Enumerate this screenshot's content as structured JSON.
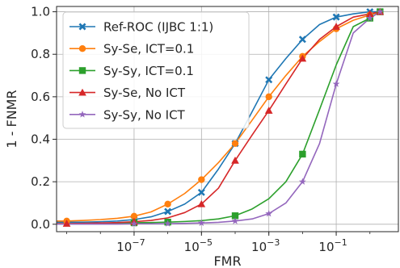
{
  "chart_data": {
    "type": "line",
    "xlabel": "FMR",
    "ylabel": "1 - FNMR",
    "xscale": "log",
    "xlim": [
      5e-10,
      7.0
    ],
    "ylim": [
      -0.035,
      1.025
    ],
    "x_ticks": [
      {
        "value": 1e-07,
        "base": "10",
        "exp": "−7"
      },
      {
        "value": 1e-05,
        "base": "10",
        "exp": "−5"
      },
      {
        "value": 0.001,
        "base": "10",
        "exp": "−3"
      },
      {
        "value": 0.1,
        "base": "10",
        "exp": "−1"
      }
    ],
    "y_ticks": [
      {
        "value": 0.0,
        "label": "0.0"
      },
      {
        "value": 0.2,
        "label": "0.2"
      },
      {
        "value": 0.4,
        "label": "0.4"
      },
      {
        "value": 0.6,
        "label": "0.6"
      },
      {
        "value": 0.8,
        "label": "0.8"
      },
      {
        "value": 1.0,
        "label": "1.0"
      }
    ],
    "grid": true,
    "legend_position": "top-left",
    "series": [
      {
        "name": "Ref-ROC (IJBC 1:1)",
        "color": "#1f77b4",
        "marker": "x",
        "x": [
          5e-10,
          1e-09,
          3.2e-09,
          1e-08,
          3.2e-08,
          1e-07,
          3.2e-07,
          1e-06,
          3.2e-06,
          1e-05,
          3.2e-05,
          0.0001,
          0.00032,
          0.001,
          0.0032,
          0.01,
          0.032,
          0.1,
          0.32,
          1.0,
          2.0
        ],
        "y": [
          0.01,
          0.01,
          0.01,
          0.012,
          0.015,
          0.022,
          0.035,
          0.06,
          0.095,
          0.15,
          0.26,
          0.38,
          0.53,
          0.68,
          0.78,
          0.87,
          0.94,
          0.975,
          0.99,
          1.0,
          1.0
        ],
        "marker_idx": [
          5,
          7,
          9,
          11,
          13,
          15,
          17,
          19,
          20
        ]
      },
      {
        "name": "Sy-Se, ICT=0.1",
        "color": "#ff7f0e",
        "marker": "o",
        "x": [
          5e-10,
          1e-09,
          3.2e-09,
          1e-08,
          3.2e-08,
          1e-07,
          3.2e-07,
          1e-06,
          3.2e-06,
          1e-05,
          3.2e-05,
          0.0001,
          0.00032,
          0.001,
          0.0032,
          0.01,
          0.032,
          0.1,
          0.32,
          1.0,
          2.0
        ],
        "y": [
          0.015,
          0.015,
          0.018,
          0.022,
          0.028,
          0.038,
          0.058,
          0.095,
          0.145,
          0.21,
          0.29,
          0.38,
          0.49,
          0.6,
          0.7,
          0.79,
          0.86,
          0.92,
          0.96,
          0.985,
          1.0
        ],
        "marker_idx": [
          1,
          5,
          7,
          9,
          11,
          13,
          15,
          17,
          19,
          20
        ]
      },
      {
        "name": "Sy-Sy, ICT=0.1",
        "color": "#2ca02c",
        "marker": "s",
        "x": [
          5e-10,
          1e-09,
          3.2e-09,
          1e-08,
          3.2e-08,
          1e-07,
          3.2e-07,
          1e-06,
          3.2e-06,
          1e-05,
          3.2e-05,
          0.0001,
          0.00032,
          0.001,
          0.0032,
          0.01,
          0.032,
          0.1,
          0.32,
          1.0,
          2.0
        ],
        "y": [
          0.003,
          0.003,
          0.004,
          0.005,
          0.006,
          0.007,
          0.008,
          0.01,
          0.013,
          0.017,
          0.025,
          0.04,
          0.072,
          0.12,
          0.2,
          0.33,
          0.54,
          0.75,
          0.93,
          0.97,
          1.0
        ],
        "marker_idx": [
          5,
          7,
          11,
          15,
          19,
          20
        ]
      },
      {
        "name": "Sy-Se, No ICT",
        "color": "#d62728",
        "marker": "^",
        "x": [
          5e-10,
          1e-09,
          3.2e-09,
          1e-08,
          3.2e-08,
          1e-07,
          3.2e-07,
          1e-06,
          3.2e-06,
          1e-05,
          3.2e-05,
          0.0001,
          0.00032,
          0.001,
          0.0032,
          0.01,
          0.032,
          0.1,
          0.32,
          1.0,
          2.0
        ],
        "y": [
          0.003,
          0.003,
          0.004,
          0.006,
          0.008,
          0.012,
          0.018,
          0.03,
          0.055,
          0.095,
          0.17,
          0.3,
          0.42,
          0.535,
          0.66,
          0.78,
          0.87,
          0.93,
          0.975,
          0.99,
          1.0
        ],
        "marker_idx": [
          1,
          5,
          9,
          11,
          13,
          15,
          17,
          19,
          20
        ]
      },
      {
        "name": "Sy-Sy, No ICT",
        "color": "#9467bd",
        "marker": "*",
        "x": [
          5e-10,
          1e-09,
          3.2e-09,
          1e-08,
          3.2e-08,
          1e-07,
          3.2e-07,
          1e-06,
          3.2e-06,
          1e-05,
          3.2e-05,
          0.0001,
          0.00032,
          0.001,
          0.0032,
          0.01,
          0.032,
          0.1,
          0.32,
          1.0,
          2.0
        ],
        "y": [
          0.001,
          0.001,
          0.001,
          0.001,
          0.001,
          0.002,
          0.002,
          0.003,
          0.004,
          0.006,
          0.009,
          0.015,
          0.025,
          0.05,
          0.1,
          0.2,
          0.38,
          0.66,
          0.9,
          0.97,
          1.0
        ],
        "marker_idx": [
          5,
          7,
          9,
          11,
          13,
          15,
          17,
          19,
          20
        ]
      }
    ]
  }
}
